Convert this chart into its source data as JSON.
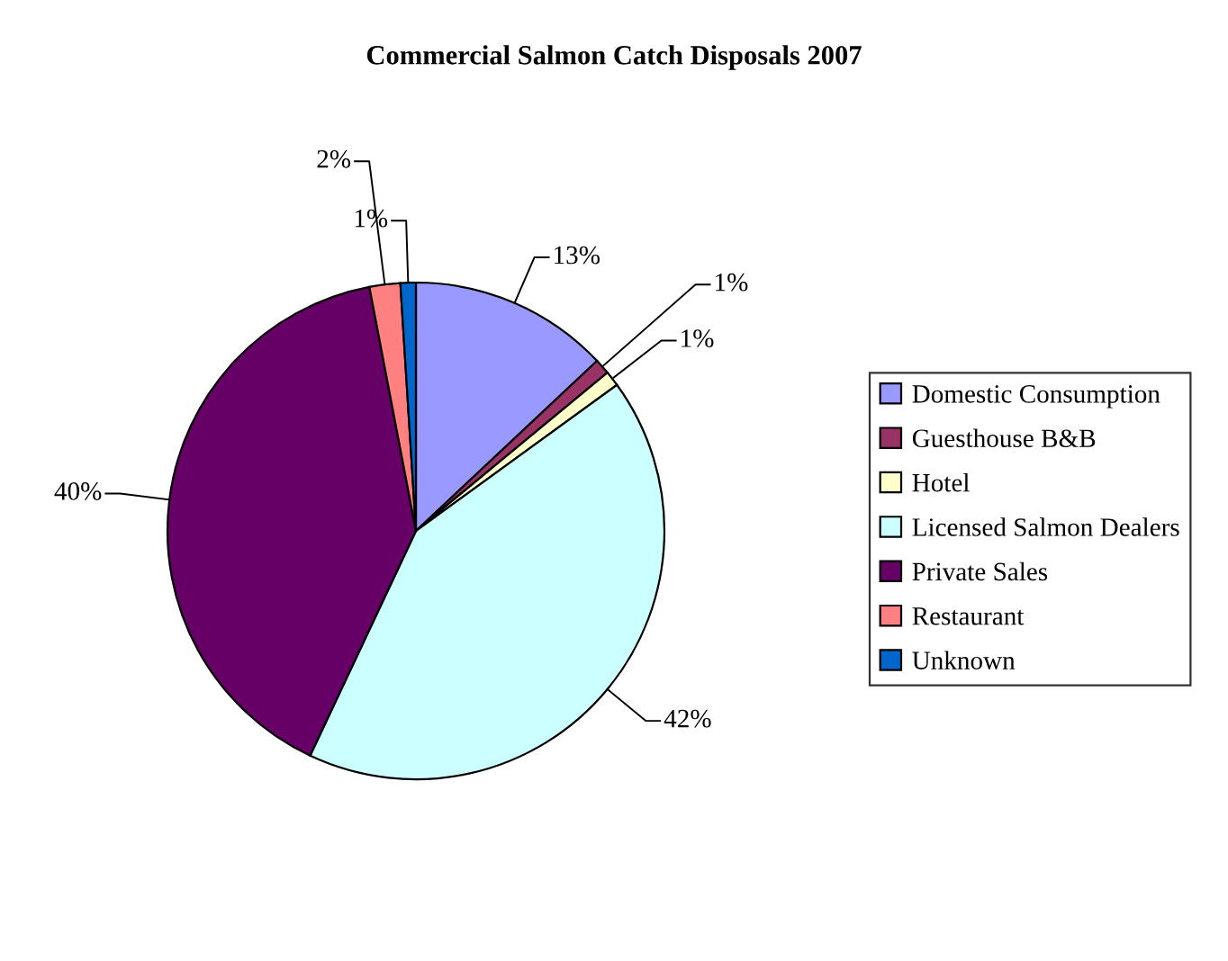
{
  "chart_data": {
    "type": "pie",
    "title": "Commercial Salmon Catch Disposals 2007",
    "categories": [
      "Domestic Consumption",
      "Guesthouse B&B",
      "Hotel",
      "Licensed Salmon Dealers",
      "Private Sales",
      "Restaurant",
      "Unknown"
    ],
    "values": [
      13,
      1,
      1,
      42,
      40,
      2,
      1
    ],
    "colors": [
      "#9999ff",
      "#993366",
      "#ffffcc",
      "#ccffff",
      "#660066",
      "#ff8080",
      "#0066cc"
    ],
    "value_labels": [
      "13%",
      "1%",
      "1%",
      "42%",
      "40%",
      "2%",
      "1%"
    ],
    "legend": "right"
  }
}
